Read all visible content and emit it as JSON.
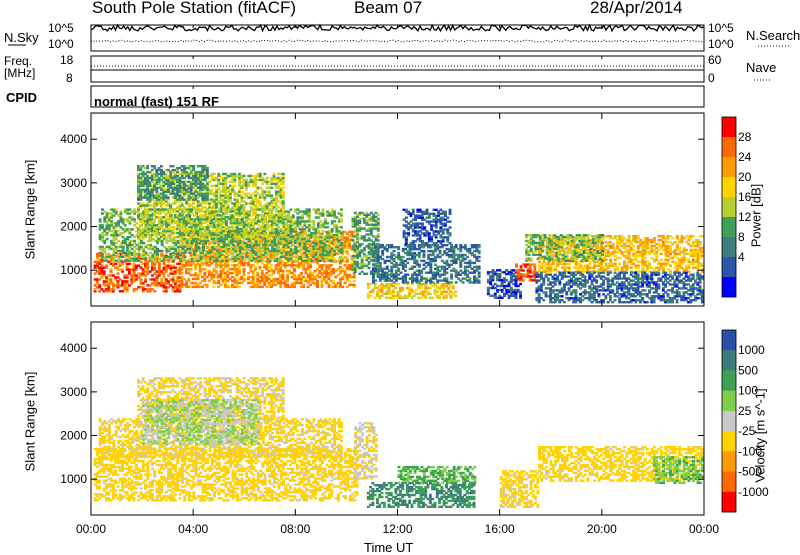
{
  "header": {
    "station": "South Pole Station (fitACF)",
    "beam": "Beam 07",
    "date": "28/Apr/2014"
  },
  "noise_panel": {
    "left_label": "N.Sky",
    "right_label": "N.Search",
    "left_ticks": [
      "10^5",
      "10^0"
    ],
    "right_ticks": [
      "10^5",
      "10^0"
    ]
  },
  "freq_panel": {
    "left_label_1": "Freq.",
    "left_label_2": "[MHz]",
    "right_label": "Nave",
    "left_ticks": [
      "18",
      "8"
    ],
    "right_ticks": [
      "60",
      "0"
    ]
  },
  "cpid": {
    "label": "CPID",
    "value": "normal (fast) 151 RF"
  },
  "chart_data": [
    {
      "type": "heatmap",
      "name": "power",
      "ylabel": "Slant Range [km]",
      "xlabel": "",
      "ylim": [
        180,
        4600
      ],
      "yticks": [
        "1000",
        "2000",
        "3000",
        "4000"
      ],
      "colorbar": {
        "label": "Power [dB]",
        "ticks": [
          "28",
          "24",
          "20",
          "16",
          "12",
          "8",
          "4"
        ],
        "colors": [
          "#ff0000",
          "#ff6a00",
          "#ff9a00",
          "#ffd200",
          "#b8cf30",
          "#3f9f55",
          "#3f7d7d",
          "#2b55a8",
          "#0000ff"
        ]
      },
      "regions": [
        {
          "t0": 0.1,
          "t1": 3.5,
          "r0": 500,
          "r1": 1400,
          "val": 27
        },
        {
          "t0": 3.5,
          "t1": 10.3,
          "r0": 600,
          "r1": 1900,
          "val": 24
        },
        {
          "t0": 0.3,
          "t1": 9.8,
          "r0": 1200,
          "r1": 2400,
          "val": 14
        },
        {
          "t0": 1.8,
          "t1": 7.5,
          "r0": 1700,
          "r1": 3200,
          "val": 16
        },
        {
          "t0": 1.8,
          "t1": 4.5,
          "r0": 2600,
          "r1": 3400,
          "val": 11
        },
        {
          "t0": 10.2,
          "t1": 11.2,
          "r0": 900,
          "r1": 2300,
          "val": 12
        },
        {
          "t0": 10.8,
          "t1": 14.3,
          "r0": 350,
          "r1": 700,
          "val": 19
        },
        {
          "t0": 11.0,
          "t1": 15.2,
          "r0": 700,
          "r1": 1600,
          "val": 8
        },
        {
          "t0": 12.2,
          "t1": 14.0,
          "r0": 1600,
          "r1": 2400,
          "val": 6
        },
        {
          "t0": 15.5,
          "t1": 16.8,
          "r0": 350,
          "r1": 1000,
          "val": 6
        },
        {
          "t0": 16.6,
          "t1": 17.4,
          "r0": 750,
          "r1": 1150,
          "val": 28
        },
        {
          "t0": 17.5,
          "t1": 23.9,
          "r0": 950,
          "r1": 1800,
          "val": 21
        },
        {
          "t0": 17.4,
          "t1": 23.9,
          "r0": 250,
          "r1": 950,
          "val": 7
        },
        {
          "t0": 17.0,
          "t1": 20.0,
          "r0": 1200,
          "r1": 1800,
          "val": 14
        }
      ]
    },
    {
      "type": "heatmap",
      "name": "velocity",
      "ylabel": "Slant Range [km]",
      "xlabel": "Time UT",
      "ylim": [
        180,
        4600
      ],
      "yticks": [
        "1000",
        "2000",
        "3000",
        "4000"
      ],
      "xticks": [
        "00:00",
        "04:00",
        "08:00",
        "12:00",
        "16:00",
        "20:00",
        "00:00"
      ],
      "colorbar": {
        "label": "Velocity [m s^-1]",
        "ticks": [
          "1000",
          "500",
          "100",
          "25",
          "-25",
          "-100",
          "-500",
          "-1000"
        ],
        "colors": [
          "#2b4fa8",
          "#3c7c7c",
          "#3f9f55",
          "#7ed04a",
          "#c8c8c8",
          "#ffd200",
          "#ff9a00",
          "#ff6a00",
          "#ff0000"
        ]
      },
      "regions": [
        {
          "t0": 0.1,
          "t1": 10.4,
          "r0": 500,
          "r1": 1700,
          "val": -150
        },
        {
          "t0": 0.3,
          "t1": 9.8,
          "r0": 1500,
          "r1": 2400,
          "val": -120
        },
        {
          "t0": 1.8,
          "t1": 7.5,
          "r0": 2300,
          "r1": 3300,
          "val": -110
        },
        {
          "t0": 2.0,
          "t1": 6.5,
          "r0": 1800,
          "r1": 2800,
          "val": 0
        },
        {
          "t0": 10.3,
          "t1": 11.2,
          "r0": 1000,
          "r1": 2300,
          "val": -50
        },
        {
          "t0": 10.8,
          "t1": 15.0,
          "r0": 350,
          "r1": 900,
          "val": 300
        },
        {
          "t0": 12.0,
          "t1": 15.0,
          "r0": 900,
          "r1": 1300,
          "val": 60
        },
        {
          "t0": 16.0,
          "t1": 17.5,
          "r0": 350,
          "r1": 1200,
          "val": -120
        },
        {
          "t0": 17.5,
          "t1": 23.9,
          "r0": 950,
          "r1": 1750,
          "val": -150
        },
        {
          "t0": 22.0,
          "t1": 23.9,
          "r0": 900,
          "r1": 1500,
          "val": 50
        }
      ]
    }
  ]
}
